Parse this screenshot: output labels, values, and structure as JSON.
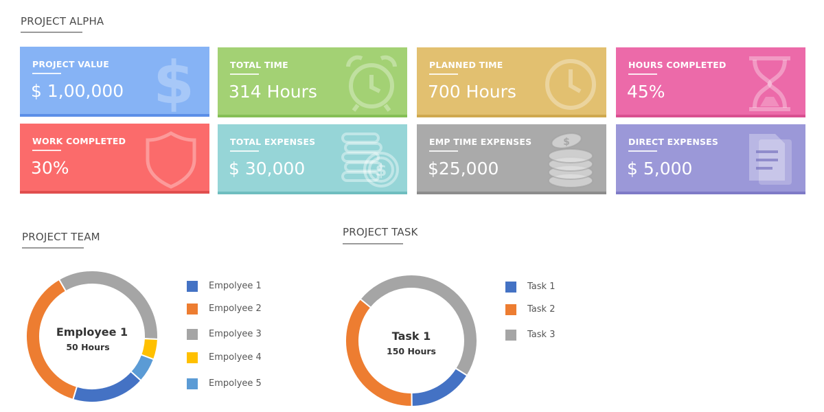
{
  "header": {
    "title": "PROJECT ALPHA"
  },
  "cards": [
    {
      "label": "PROJECT VALUE",
      "value": "$ 1,00,000",
      "icon": "dollar-icon",
      "color": "#86b3f5",
      "bottom": "#5b8fe8"
    },
    {
      "label": "TOTAL TIME",
      "value": "314 Hours",
      "icon": "alarm-clock-icon",
      "color": "#a3d174",
      "bottom": "#85bf55"
    },
    {
      "label": "PLANNED TIME",
      "value": "700 Hours",
      "icon": "clock-icon",
      "color": "#e2c070",
      "bottom": "#cfa84e"
    },
    {
      "label": "HOURS COMPLETED",
      "value": "45%",
      "icon": "hourglass-icon",
      "color": "#ec6aa9",
      "bottom": "#d94f90"
    },
    {
      "label": "WORK COMPLETED",
      "value": "30%",
      "icon": "shield-icon",
      "color": "#fb6b6b",
      "bottom": "#e04e4e"
    },
    {
      "label": "TOTAL EXPENSES",
      "value": "$ 30,000",
      "icon": "coins-icon",
      "color": "#96d5d7",
      "bottom": "#6fbdbf"
    },
    {
      "label": "EMP TIME EXPENSES",
      "value": "$25,000",
      "icon": "coin-stack-icon",
      "color": "#aaaaaa",
      "bottom": "#8c8c8c"
    },
    {
      "label": "DIRECT EXPENSES",
      "value": "$ 5,000",
      "icon": "document-icon",
      "color": "#9b98d8",
      "bottom": "#7e7ac7"
    }
  ],
  "team": {
    "title": "PROJECT TEAM",
    "center_title": "Employee 1",
    "center_sub": "50 Hours",
    "legend": [
      {
        "label": "Empolyee 1",
        "color": "#4472c4"
      },
      {
        "label": "Empolyee 2",
        "color": "#ed7d31"
      },
      {
        "label": "Empolyee 3",
        "color": "#a5a5a5"
      },
      {
        "label": "Empolyee 4",
        "color": "#ffc000"
      },
      {
        "label": "Empolyee 5",
        "color": "#5b9bd5"
      }
    ],
    "segment_values": [
      18,
      37,
      34,
      5,
      6
    ]
  },
  "tasks": {
    "title": "PROJECT TASK",
    "center_title": "Task 1",
    "center_sub": "150 Hours",
    "legend": [
      {
        "label": "Task 1",
        "color": "#4472c4"
      },
      {
        "label": "Task 2",
        "color": "#ed7d31"
      },
      {
        "label": "Task 3",
        "color": "#a5a5a5"
      }
    ],
    "segment_values": [
      16,
      36,
      48
    ]
  }
}
